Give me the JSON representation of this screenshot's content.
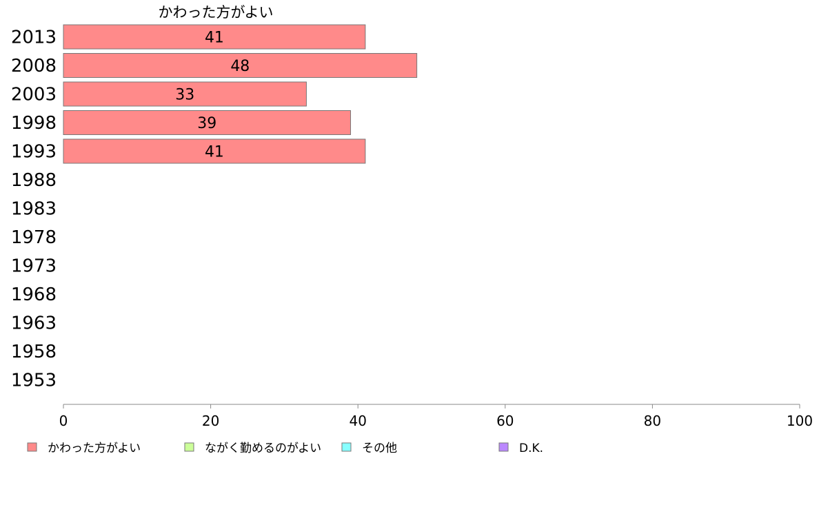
{
  "chart_data": {
    "type": "bar",
    "orientation": "horizontal",
    "title": "かわった方がよい",
    "categories": [
      "2013",
      "2008",
      "2003",
      "1998",
      "1993",
      "1988",
      "1983",
      "1978",
      "1973",
      "1968",
      "1963",
      "1958",
      "1953"
    ],
    "series": [
      {
        "name": "かわった方がよい",
        "color": "#ff8a8a",
        "values": [
          41,
          48,
          33,
          39,
          41,
          null,
          null,
          null,
          null,
          null,
          null,
          null,
          null
        ]
      }
    ],
    "xlim": [
      0,
      100
    ],
    "xticks": [
      "0",
      "20",
      "40",
      "60",
      "80",
      "100"
    ],
    "legend_position": "bottom",
    "legend": [
      {
        "label": "かわった方がよい",
        "color": "#ff8a8a"
      },
      {
        "label": "ながく勤めるのがよい",
        "color": "#ccff99"
      },
      {
        "label": "その他",
        "color": "#88ffff"
      },
      {
        "label": "D.K.",
        "color": "#bb88ff"
      }
    ]
  }
}
